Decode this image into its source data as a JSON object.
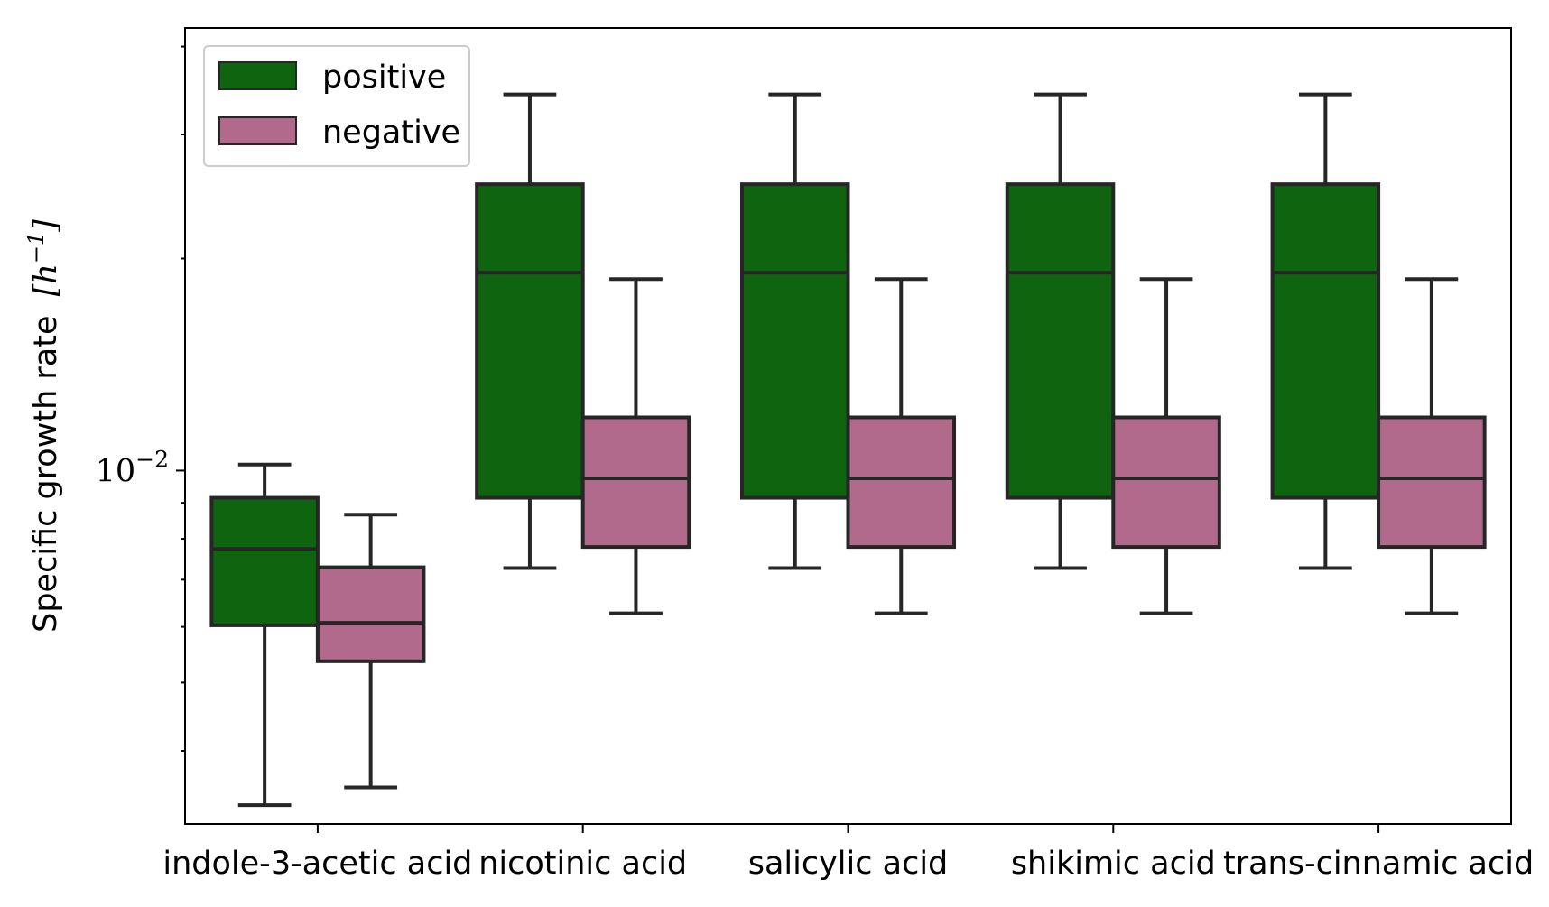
{
  "chart_data": {
    "type": "boxplot",
    "categories": [
      "indole-3-acetic acid",
      "nicotinic acid",
      "salicylic acid",
      "shikimic acid",
      "trans-cinnamic acid"
    ],
    "ylabel": "Specific growth rate",
    "ylabel_unit": "[h",
    "ylabel_unit_exp": "−1",
    "ylabel_unit_close": "]",
    "yscale": "log",
    "ylim": [
      0.00315,
      0.0425
    ],
    "ytick_labels": [
      {
        "value": 0.01,
        "base": "10",
        "exp": "−2"
      }
    ],
    "legend": {
      "placement": "upper left",
      "entries": [
        "positive",
        "negative"
      ]
    },
    "colors": {
      "positive": "#0f6410",
      "negative": "#b16a8b",
      "edge": "#262626"
    },
    "series": [
      {
        "name": "positive",
        "boxes": [
          {
            "whislo": 0.00335,
            "q1": 0.00603,
            "med": 0.00774,
            "q3": 0.00915,
            "whishi": 0.0102
          },
          {
            "whislo": 0.00727,
            "q1": 0.00915,
            "med": 0.0191,
            "q3": 0.0255,
            "whishi": 0.0342
          },
          {
            "whislo": 0.00727,
            "q1": 0.00915,
            "med": 0.0191,
            "q3": 0.0255,
            "whishi": 0.0342
          },
          {
            "whislo": 0.00727,
            "q1": 0.00915,
            "med": 0.0191,
            "q3": 0.0255,
            "whishi": 0.0342
          },
          {
            "whislo": 0.00727,
            "q1": 0.00915,
            "med": 0.0191,
            "q3": 0.0255,
            "whishi": 0.0342
          }
        ]
      },
      {
        "name": "negative",
        "boxes": [
          {
            "whislo": 0.00355,
            "q1": 0.00536,
            "med": 0.00608,
            "q3": 0.00729,
            "whishi": 0.00866
          },
          {
            "whislo": 0.00627,
            "q1": 0.00779,
            "med": 0.00975,
            "q3": 0.0119,
            "whishi": 0.0187
          },
          {
            "whislo": 0.00627,
            "q1": 0.00779,
            "med": 0.00975,
            "q3": 0.0119,
            "whishi": 0.0187
          },
          {
            "whislo": 0.00627,
            "q1": 0.00779,
            "med": 0.00975,
            "q3": 0.0119,
            "whishi": 0.0187
          },
          {
            "whislo": 0.00627,
            "q1": 0.00779,
            "med": 0.00975,
            "q3": 0.0119,
            "whishi": 0.0187
          }
        ]
      }
    ]
  }
}
